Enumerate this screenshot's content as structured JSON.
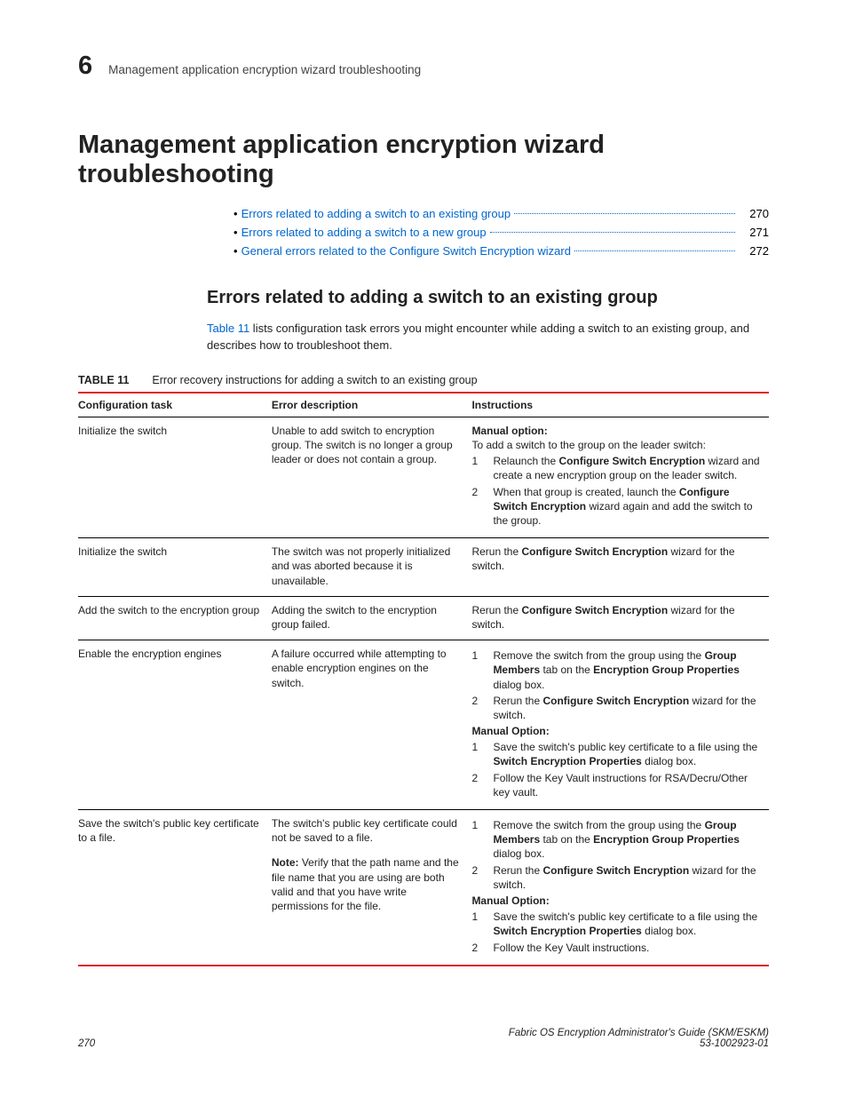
{
  "header": {
    "chapter_number": "6",
    "running_head": "Management application encryption wizard troubleshooting"
  },
  "h1": "Management application encryption wizard troubleshooting",
  "toc": [
    {
      "label": "Errors related to adding a switch to an existing group",
      "page": "270"
    },
    {
      "label": "Errors related to adding a switch to a new group",
      "page": "271"
    },
    {
      "label": "General errors related to the Configure Switch Encryption wizard",
      "page": "272"
    }
  ],
  "h2": "Errors related to adding a switch to an existing group",
  "intro": {
    "xref": "Table 11",
    "text_after": " lists configuration task errors you might encounter while adding a switch to an existing group, and describes how to troubleshoot them."
  },
  "table": {
    "label": "TABLE 11",
    "caption": "Error recovery instructions for adding a switch to an existing group",
    "columns": [
      "Configuration task",
      "Error description",
      "Instructions"
    ],
    "rows": [
      {
        "task": "Initialize the switch",
        "error": "Unable to add switch to encryption group. The switch is no longer a group leader or does not contain a group.",
        "inst": {
          "lead_bold": "Manual option:",
          "lead_plain": "To add a switch to the group on the leader switch:",
          "ol": [
            [
              {
                "t": "Relaunch the "
              },
              {
                "b": "Configure Switch Encryption"
              },
              {
                "t": " wizard and create a new encryption group on the leader switch."
              }
            ],
            [
              {
                "t": "When that group is created, launch the "
              },
              {
                "b": "Configure Switch Encryption"
              },
              {
                "t": " wizard again and add the switch to the group."
              }
            ]
          ]
        }
      },
      {
        "task": "Initialize the switch",
        "error": "The switch was not properly initialized and was aborted because it is unavailable.",
        "inst": {
          "single": [
            {
              "t": "Rerun the "
            },
            {
              "b": "Configure Switch Encryption"
            },
            {
              "t": " wizard for the switch."
            }
          ]
        }
      },
      {
        "task": "Add the switch to the encryption group",
        "error": "Adding the switch to the encryption group failed.",
        "inst": {
          "single": [
            {
              "t": "Rerun the "
            },
            {
              "b": "Configure Switch Encryption"
            },
            {
              "t": " wizard for the switch."
            }
          ]
        }
      },
      {
        "task": "Enable the encryption engines",
        "error": "A failure occurred while attempting to enable encryption engines on the switch.",
        "inst": {
          "ol": [
            [
              {
                "t": "Remove the switch from the group using the "
              },
              {
                "b": "Group Members"
              },
              {
                "t": " tab on the "
              },
              {
                "b": "Encryption Group Properties"
              },
              {
                "t": " dialog box."
              }
            ],
            [
              {
                "t": "Rerun the "
              },
              {
                "b": "Configure Switch Encryption"
              },
              {
                "t": " wizard for the switch."
              }
            ]
          ],
          "mid_bold": "Manual Option:",
          "ol2": [
            [
              {
                "t": "Save the switch's public key certificate to a file using the "
              },
              {
                "b": "Switch Encryption Properties"
              },
              {
                "t": " dialog box."
              }
            ],
            [
              {
                "t": "Follow the Key Vault instructions for RSA/Decru/Other key vault."
              }
            ]
          ]
        }
      },
      {
        "task": "Save the switch's public key certificate to a file.",
        "error_blocks": [
          {
            "plain": "The switch's public key certificate could not be saved to a file."
          },
          {
            "note_label": "Note:",
            "note_text": " Verify that the path name and the file name that you are using are both valid and that you have write permissions for the file."
          }
        ],
        "inst": {
          "ol": [
            [
              {
                "t": "Remove the switch from the group using the "
              },
              {
                "b": "Group Members"
              },
              {
                "t": " tab on the "
              },
              {
                "b": "Encryption Group Properties"
              },
              {
                "t": " dialog box."
              }
            ],
            [
              {
                "t": "Rerun the "
              },
              {
                "b": "Configure Switch Encryption"
              },
              {
                "t": " wizard for the switch."
              }
            ]
          ],
          "mid_bold": "Manual Option:",
          "ol2": [
            [
              {
                "t": "Save the switch's public key certificate to a file using the "
              },
              {
                "b": "Switch Encryption Properties"
              },
              {
                "t": " dialog box."
              }
            ],
            [
              {
                "t": "Follow the Key Vault instructions."
              }
            ]
          ]
        }
      }
    ]
  },
  "footer": {
    "page_num": "270",
    "title": "Fabric OS Encryption Administrator's Guide (SKM/ESKM)",
    "docnum": "53-1002923-01"
  }
}
